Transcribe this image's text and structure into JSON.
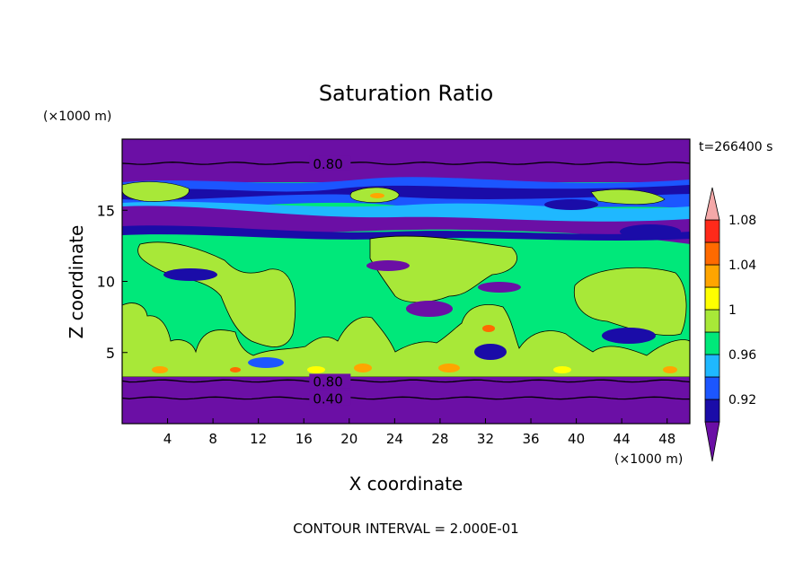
{
  "chart_data": {
    "type": "heatmap",
    "title": "Saturation Ratio",
    "xlabel": "X coordinate",
    "ylabel": "Z coordinate",
    "x_unit": "(×1000 m)",
    "y_unit": "(×1000 m)",
    "time_label": "t=266400 s",
    "footer": "CONTOUR INTERVAL = 2.000E-01",
    "xlim": [
      0,
      50
    ],
    "ylim": [
      0,
      20
    ],
    "x_ticks": [
      4,
      8,
      12,
      16,
      20,
      24,
      28,
      32,
      36,
      40,
      44,
      48
    ],
    "y_ticks": [
      5,
      10,
      15
    ],
    "contour_lines": [
      {
        "label": "0.80",
        "z": 18.3,
        "label_x": 16.8
      },
      {
        "label": "0.80",
        "z": 3.0,
        "label_x": 16.8
      },
      {
        "label": "0.40",
        "z": 1.8,
        "label_x": 16.8
      }
    ],
    "colorbar": {
      "labels": [
        "1.08",
        "1.04",
        "1",
        "0.96",
        "0.92"
      ],
      "levels": [
        {
          "value": 0.9,
          "color": "#6b0fa5"
        },
        {
          "value": 0.92,
          "color": "#1a0ca8"
        },
        {
          "value": 0.94,
          "color": "#1c56ff"
        },
        {
          "value": 0.96,
          "color": "#1fb8ff"
        },
        {
          "value": 0.98,
          "color": "#00e87a"
        },
        {
          "value": 1.0,
          "color": "#a8e838"
        },
        {
          "value": 1.02,
          "color": "#ffff00"
        },
        {
          "value": 1.04,
          "color": "#ffa500"
        },
        {
          "value": 1.06,
          "color": "#ff6a00"
        },
        {
          "value": 1.08,
          "color": "#ff2a1a"
        },
        {
          "value": 1.1,
          "color": "#f4a8a8"
        }
      ]
    }
  }
}
